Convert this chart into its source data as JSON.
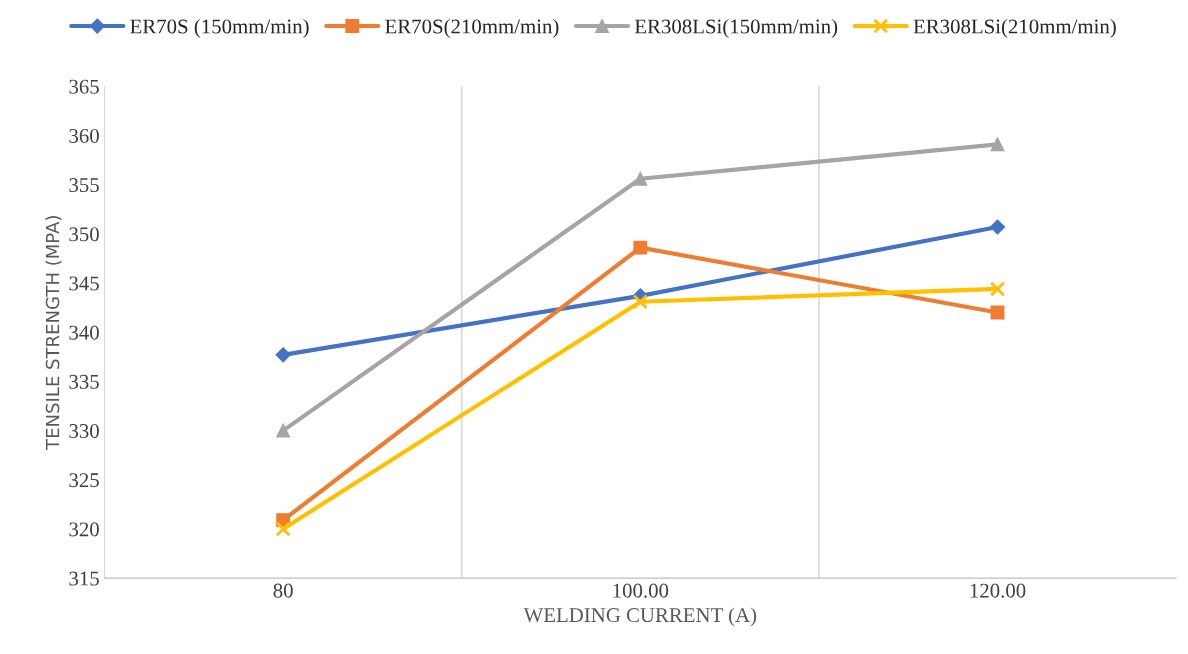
{
  "chart_data": {
    "type": "line",
    "xlabel": "WELDING CURRENT (A)",
    "ylabel": "TENSILE STRENGTH (MPA)",
    "categories": [
      "80",
      "100.00",
      "120.00"
    ],
    "series": [
      {
        "name": "ER70S (150mm/min)",
        "color": "#4472c4",
        "marker": "diamond",
        "values": [
          337.7,
          343.7,
          350.7
        ]
      },
      {
        "name": "ER70S(210mm/min)",
        "color": "#ed7d31",
        "marker": "square",
        "values": [
          320.9,
          348.6,
          342.0
        ]
      },
      {
        "name": "ER308LSi(150mm/min)",
        "color": "#a5a5a5",
        "marker": "triangle",
        "values": [
          330.0,
          355.6,
          359.1
        ]
      },
      {
        "name": "ER308LSi(210mm/min)",
        "color": "#ffc000",
        "marker": "cross",
        "values": [
          320.0,
          343.1,
          344.4
        ]
      }
    ],
    "ylim": [
      315,
      365
    ],
    "yticks": [
      315,
      320,
      325,
      330,
      335,
      340,
      345,
      350,
      355,
      360,
      365
    ],
    "grid": "x",
    "legend": "top",
    "line_style": "solid"
  }
}
